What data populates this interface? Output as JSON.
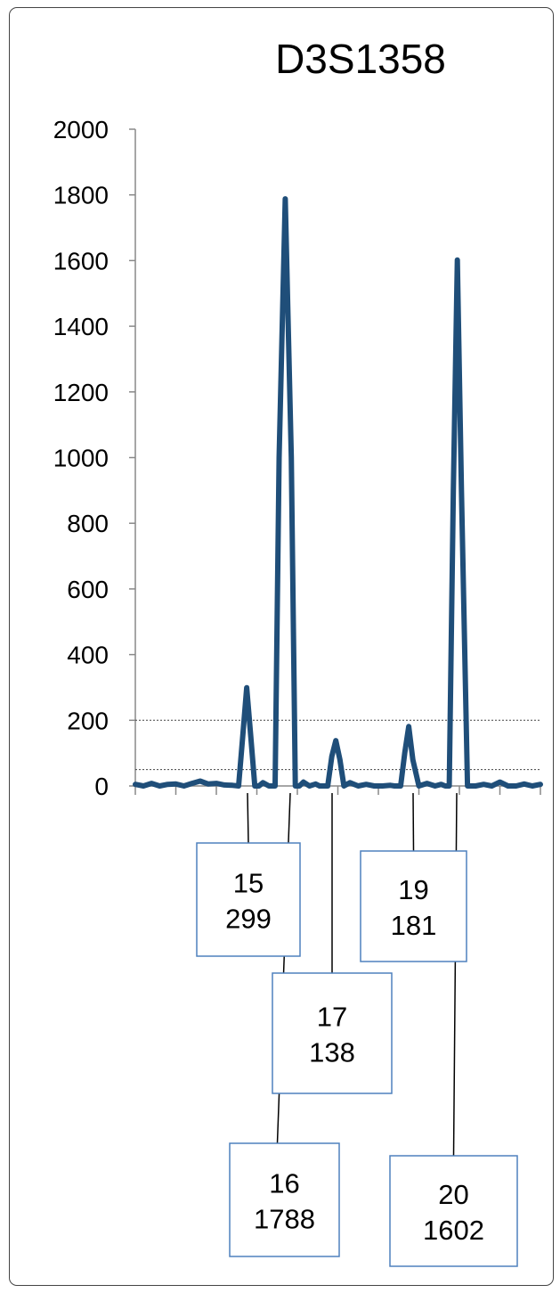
{
  "chart_data": {
    "type": "line",
    "title": "D3S1358",
    "xlabel": "",
    "ylabel": "",
    "ylim": [
      0,
      2000
    ],
    "yticks": [
      0,
      200,
      400,
      600,
      800,
      1000,
      1200,
      1400,
      1600,
      1800,
      2000
    ],
    "xlim": [
      0,
      100
    ],
    "grid": false,
    "thresholds": [
      50,
      200
    ],
    "series": [
      {
        "x": [
          0,
          2,
          4,
          6,
          8,
          10,
          12,
          14,
          16,
          18,
          20,
          22,
          24,
          25.5,
          26.5,
          27.5,
          28.5,
          29.5,
          30.5,
          31.5,
          33,
          34.5,
          35.5,
          37,
          38.5,
          39.5,
          40.5,
          41.5,
          43,
          44.5,
          45.5,
          47.5,
          48.5,
          49.5,
          50.5,
          51.5,
          53,
          55,
          57,
          59,
          61,
          63,
          64,
          65.5,
          66.5,
          67.5,
          68.5,
          70,
          72,
          74,
          75.5,
          76.5,
          77.5,
          78.5,
          79.5,
          80.5,
          82,
          84,
          86,
          88,
          90,
          92,
          94,
          96,
          98,
          100
        ],
        "y": [
          5,
          0,
          8,
          0,
          5,
          6,
          0,
          8,
          15,
          6,
          8,
          3,
          2,
          0,
          150,
          299,
          150,
          0,
          0,
          10,
          0,
          0,
          1000,
          1788,
          1000,
          0,
          0,
          12,
          0,
          6,
          0,
          0,
          90,
          138,
          80,
          0,
          10,
          0,
          5,
          0,
          0,
          2,
          0,
          0,
          100,
          181,
          80,
          0,
          8,
          0,
          5,
          0,
          0,
          900,
          1602,
          900,
          0,
          0,
          5,
          0,
          12,
          0,
          0,
          6,
          0,
          5
        ]
      }
    ],
    "callouts": [
      {
        "allele": "15",
        "height": "299"
      },
      {
        "allele": "16",
        "height": "1788"
      },
      {
        "allele": "17",
        "height": "138"
      },
      {
        "allele": "19",
        "height": "181"
      },
      {
        "allele": "20",
        "height": "1602"
      }
    ],
    "colors": {
      "line": "#1F4E79",
      "callout_border": "#4F81BD",
      "threshold": "#444444",
      "axis": "#888888"
    }
  }
}
